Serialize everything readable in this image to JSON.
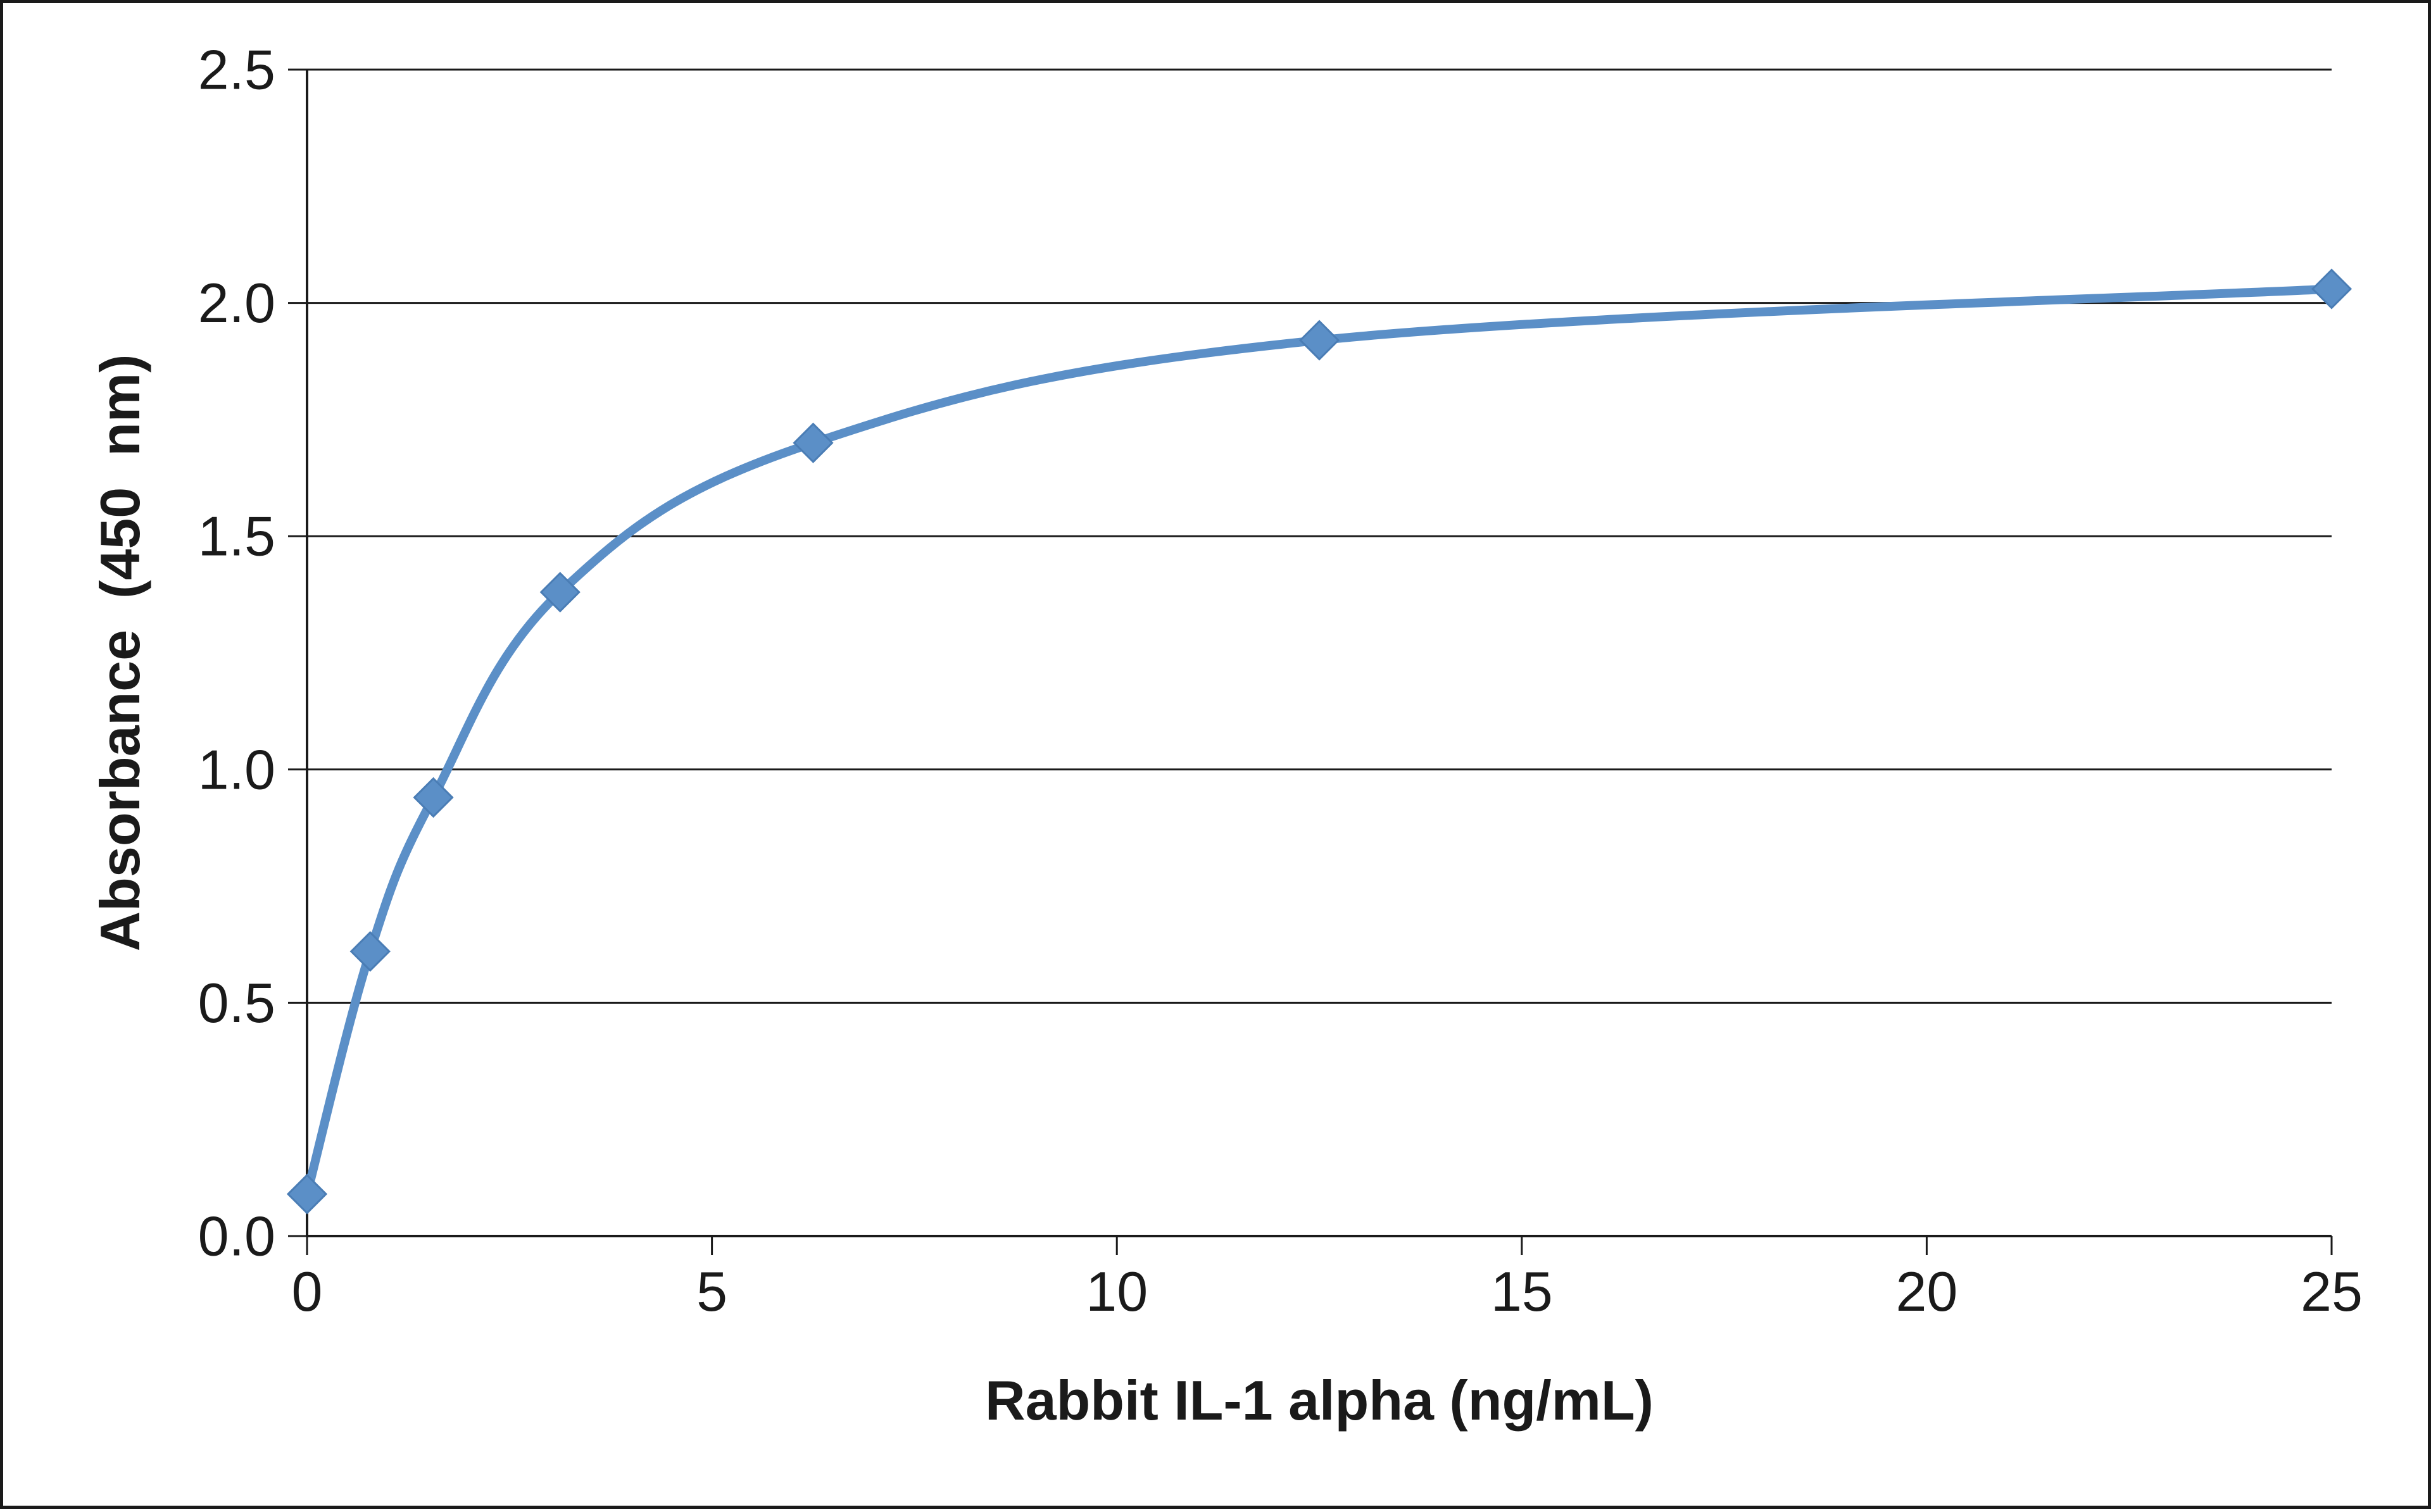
{
  "chart_data": {
    "type": "line",
    "title": "",
    "xlabel": "Rabbit IL-1 alpha (ng/mL)",
    "ylabel": "Absorbance  (450  nm)",
    "xlim": [
      0,
      25
    ],
    "ylim": [
      0,
      2.5
    ],
    "x_ticks": [
      "0",
      "5",
      "10",
      "15",
      "20",
      "25"
    ],
    "y_ticks": [
      "0.0",
      "0.5",
      "1.0",
      "1.5",
      "2.0",
      "2.5"
    ],
    "grid": "horizontal major gridlines",
    "legend": "none",
    "smoothed": true,
    "marker": "diamond",
    "series_color": "#5b8fc7",
    "series": [
      {
        "x": [
          0,
          0.78,
          1.56,
          3.125,
          6.25,
          12.5,
          25
        ],
        "y": [
          0.09,
          0.61,
          0.94,
          1.38,
          1.7,
          1.92,
          2.03
        ]
      }
    ]
  }
}
